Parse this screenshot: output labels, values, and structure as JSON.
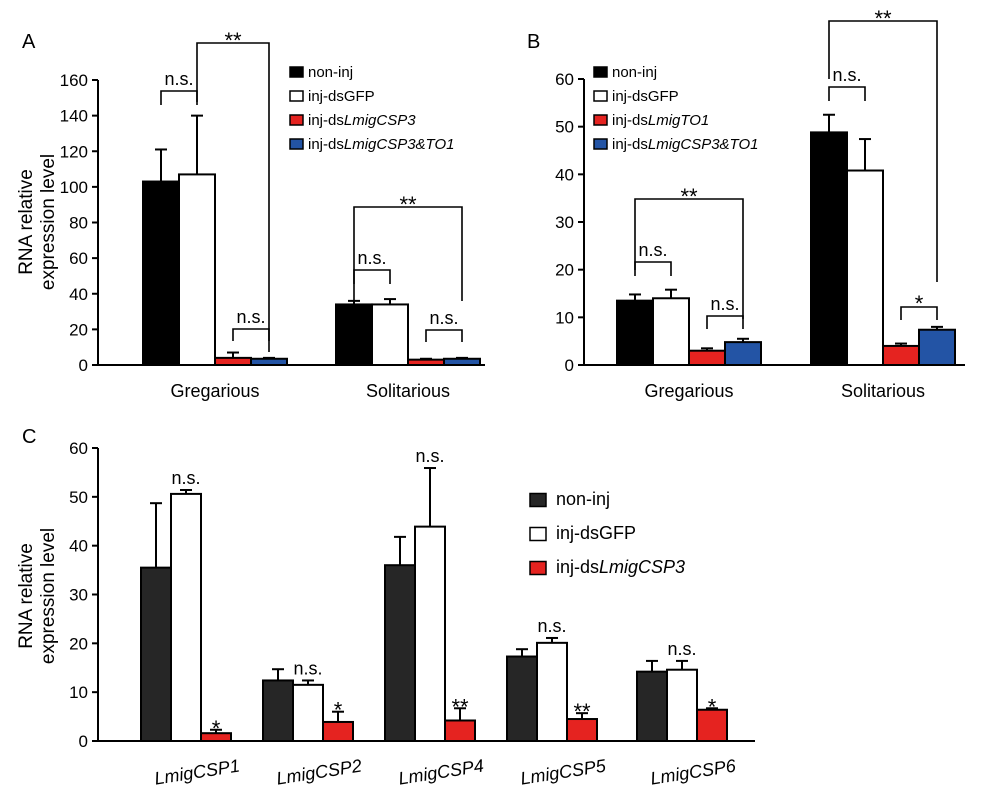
{
  "figure": {
    "series_colors": {
      "non-inj": "#000000",
      "non-inj-c": "#262626",
      "inj-dsGFP": "#ffffff",
      "inj-ds-red": "#e52320",
      "inj-ds-blue": "#2354a5"
    }
  },
  "chart_data": [
    {
      "panel": "A",
      "type": "bar",
      "ylabel": [
        "RNA relative",
        "expression level"
      ],
      "ylim": [
        0,
        160
      ],
      "yticks": [
        0,
        20,
        40,
        60,
        80,
        100,
        120,
        140,
        160
      ],
      "categories": [
        "Gregarious",
        "Solitarious"
      ],
      "series": [
        {
          "name": "non-inj",
          "values": [
            103,
            34
          ],
          "errors": [
            18,
            2
          ]
        },
        {
          "name": "inj-dsGFP",
          "values": [
            107,
            34
          ],
          "errors": [
            33,
            3
          ]
        },
        {
          "name": "inj-dsLmigCSP3",
          "name_prefix": "inj-ds",
          "name_italic": "LmigCSP3",
          "values": [
            4,
            3
          ],
          "errors": [
            3,
            0.5
          ]
        },
        {
          "name": "inj-dsLmigCSP3&TO1",
          "name_prefix": "inj-ds",
          "name_italic": "LmigCSP3&TO1",
          "values": [
            3.5,
            3.5
          ],
          "errors": [
            0.5,
            0.5
          ]
        }
      ],
      "annotations": [
        {
          "text": "n.s.",
          "category": 0,
          "between": [
            0,
            1
          ]
        },
        {
          "text": "n.s.",
          "category": 0,
          "between": [
            2,
            3
          ]
        },
        {
          "text": "**",
          "category": 0,
          "between": [
            1,
            3
          ]
        },
        {
          "text": "n.s.",
          "category": 1,
          "between": [
            0,
            1
          ]
        },
        {
          "text": "n.s.",
          "category": 1,
          "between": [
            2,
            3
          ]
        },
        {
          "text": "**",
          "category": 1,
          "between": [
            0,
            3
          ]
        }
      ],
      "legend": "top-right",
      "grid": false
    },
    {
      "panel": "B",
      "type": "bar",
      "ylabel": [],
      "ylim": [
        0,
        60
      ],
      "yticks": [
        0,
        10,
        20,
        30,
        40,
        50,
        60
      ],
      "categories": [
        "Gregarious",
        "Solitarious"
      ],
      "series": [
        {
          "name": "non-inj",
          "values": [
            13.5,
            48.8
          ],
          "errors": [
            1.3,
            3.7
          ]
        },
        {
          "name": "inj-dsGFP",
          "values": [
            14,
            40.8
          ],
          "errors": [
            1.8,
            6.6
          ]
        },
        {
          "name": "inj-dsLmigTO1",
          "name_prefix": "inj-ds",
          "name_italic": "LmigTO1",
          "values": [
            3,
            4
          ],
          "errors": [
            0.5,
            0.5
          ]
        },
        {
          "name": "inj-dsLmigCSP3&TO1",
          "name_prefix": "inj-ds",
          "name_italic": "LmigCSP3&TO1",
          "values": [
            4.8,
            7.4
          ],
          "errors": [
            0.7,
            0.6
          ]
        }
      ],
      "annotations": [
        {
          "text": "n.s.",
          "category": 0,
          "between": [
            0,
            1
          ]
        },
        {
          "text": "n.s.",
          "category": 0,
          "between": [
            2,
            3
          ]
        },
        {
          "text": "**",
          "category": 0,
          "between": [
            0,
            3
          ]
        },
        {
          "text": "n.s.",
          "category": 1,
          "between": [
            0,
            1
          ]
        },
        {
          "text": "*",
          "category": 1,
          "between": [
            2,
            3
          ]
        },
        {
          "text": "**",
          "category": 1,
          "between": [
            0,
            3
          ]
        }
      ],
      "legend": "top-left",
      "grid": false
    },
    {
      "panel": "C",
      "type": "bar",
      "ylabel": [
        "RNA relative",
        "expression level"
      ],
      "ylim": [
        0,
        60
      ],
      "yticks": [
        0,
        10,
        20,
        30,
        40,
        50,
        60
      ],
      "categories": [
        "LmigCSP1",
        "LmigCSP2",
        "LmigCSP4",
        "LmigCSP5",
        "LmigCSP6"
      ],
      "series": [
        {
          "name": "non-inj",
          "values": [
            35.5,
            12.4,
            36,
            17.3,
            14.2
          ],
          "errors": [
            13.2,
            2.3,
            5.8,
            1.5,
            2.2
          ]
        },
        {
          "name": "inj-dsGFP",
          "values": [
            50.6,
            11.5,
            43.9,
            20.1,
            14.6
          ],
          "errors": [
            0.8,
            0.9,
            12,
            1,
            1.8
          ]
        },
        {
          "name": "inj-dsLmigCSP3",
          "name_prefix": "inj-ds",
          "name_italic": "LmigCSP3",
          "values": [
            1.6,
            3.9,
            4.2,
            4.5,
            6.4
          ],
          "errors": [
            0.7,
            2.1,
            2.5,
            1.2,
            0.3
          ]
        }
      ],
      "annotations": [
        {
          "text": "n.s.",
          "category": 0,
          "series": 1
        },
        {
          "text": "*",
          "category": 0,
          "series": 2
        },
        {
          "text": "n.s.",
          "category": 1,
          "series": 1
        },
        {
          "text": "*",
          "category": 1,
          "series": 2
        },
        {
          "text": "n.s.",
          "category": 2,
          "series": 1
        },
        {
          "text": "**",
          "category": 2,
          "series": 2
        },
        {
          "text": "n.s.",
          "category": 3,
          "series": 1
        },
        {
          "text": "**",
          "category": 3,
          "series": 2
        },
        {
          "text": "n.s.",
          "category": 4,
          "series": 1
        },
        {
          "text": "*",
          "category": 4,
          "series": 2
        }
      ],
      "legend": "right",
      "grid": false
    }
  ]
}
